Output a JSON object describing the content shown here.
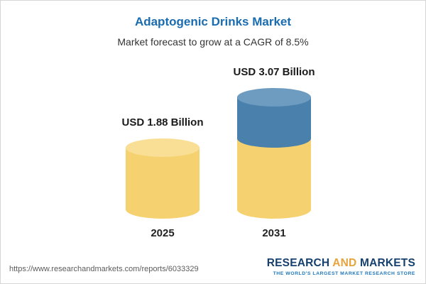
{
  "chart_data": {
    "type": "bar",
    "title": "Adaptogenic Drinks Market",
    "subtitle": "Market forecast to grow at a CAGR of 8.5%",
    "categories": [
      "2025",
      "2031"
    ],
    "values": [
      1.88,
      3.07
    ],
    "value_labels": [
      "USD 1.88 Billion",
      "USD 3.07 Billion"
    ],
    "unit": "USD Billion",
    "cagr_percent": 8.5,
    "ylim": [
      0,
      3.5
    ],
    "grid": false,
    "legend": false,
    "bar_style": "cylinder",
    "colors": {
      "base": "#f6d170",
      "base_light": "#f9df96",
      "growth": "#4a80ac",
      "growth_light": "#6d9cc0",
      "title": "#1a6cb0"
    }
  },
  "footer": {
    "url": "https://www.researchandmarkets.com/reports/6033329",
    "logo": {
      "part1": "RESEARCH",
      "part2": "AND",
      "part3": "MARKETS",
      "tagline": "THE WORLD'S LARGEST MARKET RESEARCH STORE"
    }
  }
}
